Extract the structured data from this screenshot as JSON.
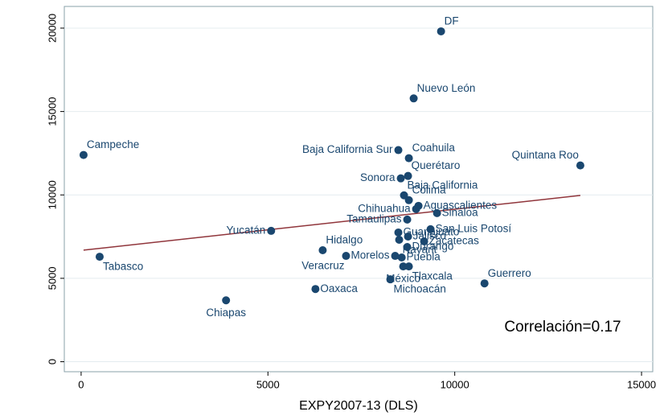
{
  "chart_data": {
    "type": "scatter",
    "xlabel": "EXPY2007-13 (DLS)",
    "annotation": "Correlación=0.17",
    "color": "#1a476f",
    "fit_color": "#90353b",
    "grid": true,
    "xlim": [
      -450,
      15300
    ],
    "ylim": [
      -600,
      21300
    ],
    "xticks": [
      0,
      5000,
      10000,
      15000
    ],
    "yticks": [
      0,
      5000,
      10000,
      15000,
      20000
    ],
    "labels": [
      "DF",
      "Nuevo León",
      "Campeche",
      "Baja California Sur",
      "Coahuila",
      "Quintana Roo",
      "Querétaro",
      "Sonora",
      "Baja California",
      "Colima",
      "Aguascalientes",
      "Chihuahua",
      "Sinaloa",
      "Tamaulipas",
      "San Luis Potosí",
      "Guanajuato",
      "Jalisco",
      "Zacatecas",
      "Yucatán",
      "Nayarit",
      "Durango",
      "Hidalgo",
      "Morelos",
      "Puebla",
      "Veracruz",
      "Tabasco",
      "Tlaxcala",
      "México",
      "Michoacán",
      "Guerrero",
      "Oaxaca",
      "Chiapas"
    ],
    "x": [
      9634,
      8901,
      65,
      8491,
      8772,
      13362,
      8750,
      8556,
      8642,
      8772,
      9030,
      8966,
      9526,
      8728,
      9353,
      8491,
      8750,
      9181,
      5086,
      8513,
      8728,
      6466,
      8405,
      8580,
      7091,
      496,
      8772,
      8621,
      8276,
      10797,
      6272,
      3879
    ],
    "values": [
      19806,
      15787,
      12397,
      12688,
      12203,
      11768,
      11138,
      10993,
      9976,
      9685,
      9346,
      9153,
      8910,
      8523,
      7942,
      7748,
      7506,
      7215,
      7845,
      7312,
      6877,
      6683,
      6344,
      6250,
      6344,
      6295,
      5714,
      5714,
      4939,
      4697,
      4358,
      3680
    ],
    "fit_line": {
      "x": [
        65,
        13362
      ],
      "values": [
        6690,
        9970
      ]
    }
  }
}
